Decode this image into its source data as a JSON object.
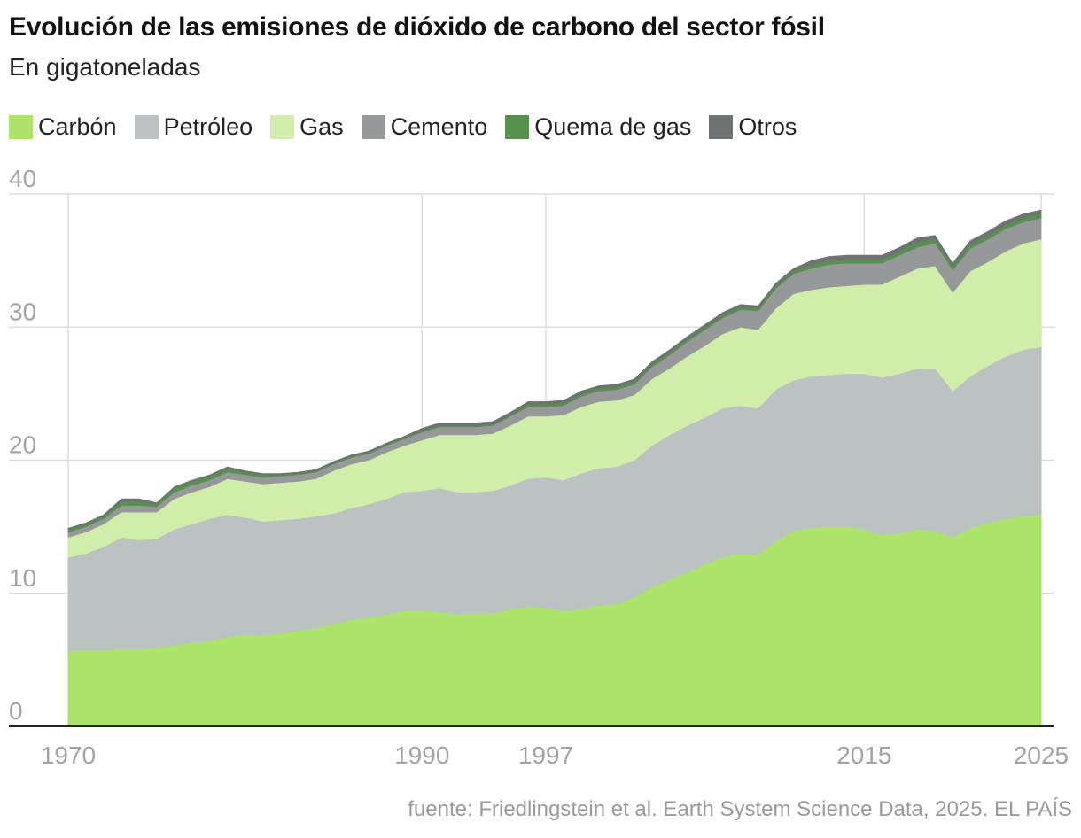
{
  "header": {
    "title": "Evolución de las emisiones de dióxido de carbono del sector fósil",
    "subtitle": "En gigatoneladas"
  },
  "source": "fuente: Friedlingstein et al. Earth System Science Data, 2025. EL PAÍS",
  "chart_data": {
    "type": "area",
    "stacked": true,
    "legend_position": "top-left",
    "grid": true,
    "xlim": [
      1970,
      2025
    ],
    "ylim": [
      0,
      40
    ],
    "x_ticks": [
      1970,
      1990,
      1997,
      2015,
      2025
    ],
    "y_ticks": [
      0,
      10,
      20,
      30,
      40
    ],
    "x": [
      1970,
      1971,
      1972,
      1973,
      1974,
      1975,
      1976,
      1977,
      1978,
      1979,
      1980,
      1981,
      1982,
      1983,
      1984,
      1985,
      1986,
      1987,
      1988,
      1989,
      1990,
      1991,
      1992,
      1993,
      1994,
      1995,
      1996,
      1997,
      1998,
      1999,
      2000,
      2001,
      2002,
      2003,
      2004,
      2005,
      2006,
      2007,
      2008,
      2009,
      2010,
      2011,
      2012,
      2013,
      2014,
      2015,
      2016,
      2017,
      2018,
      2019,
      2020,
      2021,
      2022,
      2023,
      2024,
      2025
    ],
    "series": [
      {
        "name": "Carbón",
        "color": "#abe36b",
        "values": [
          5.7,
          5.7,
          5.7,
          5.8,
          5.8,
          5.9,
          6.1,
          6.3,
          6.4,
          6.7,
          6.9,
          6.8,
          7.0,
          7.2,
          7.4,
          7.7,
          8.0,
          8.2,
          8.4,
          8.7,
          8.7,
          8.6,
          8.4,
          8.5,
          8.5,
          8.8,
          9.0,
          8.9,
          8.7,
          8.8,
          9.1,
          9.2,
          9.7,
          10.5,
          11.0,
          11.6,
          12.2,
          12.7,
          13.0,
          12.9,
          13.9,
          14.7,
          14.9,
          15.0,
          15.0,
          14.8,
          14.4,
          14.5,
          14.8,
          14.7,
          14.2,
          14.9,
          15.3,
          15.6,
          15.8,
          15.9
        ]
      },
      {
        "name": "Petróleo",
        "color": "#bcc1c1",
        "values": [
          7.0,
          7.3,
          7.8,
          8.4,
          8.2,
          8.2,
          8.7,
          8.9,
          9.2,
          9.2,
          8.8,
          8.6,
          8.5,
          8.4,
          8.4,
          8.3,
          8.4,
          8.5,
          8.7,
          8.9,
          9.0,
          9.3,
          9.2,
          9.1,
          9.2,
          9.3,
          9.6,
          9.8,
          9.8,
          10.2,
          10.3,
          10.3,
          10.3,
          10.6,
          10.9,
          11.0,
          11.0,
          11.2,
          11.1,
          11.0,
          11.4,
          11.3,
          11.4,
          11.4,
          11.5,
          11.7,
          11.8,
          12.0,
          12.1,
          12.2,
          11.0,
          11.4,
          11.8,
          12.2,
          12.5,
          12.6
        ]
      },
      {
        "name": "Gas",
        "color": "#d0edaa",
        "values": [
          1.5,
          1.6,
          1.7,
          1.9,
          2.1,
          2.0,
          2.3,
          2.4,
          2.4,
          2.7,
          2.7,
          2.8,
          2.8,
          2.8,
          2.8,
          3.2,
          3.3,
          3.3,
          3.5,
          3.5,
          3.8,
          4.0,
          4.3,
          4.3,
          4.3,
          4.5,
          4.7,
          4.6,
          4.9,
          5.0,
          5.0,
          5.0,
          4.9,
          5.0,
          5.0,
          5.2,
          5.4,
          5.6,
          5.9,
          5.9,
          6.1,
          6.5,
          6.5,
          6.6,
          6.6,
          6.7,
          7.0,
          7.3,
          7.5,
          7.7,
          7.4,
          7.9,
          7.8,
          7.9,
          8.0,
          8.1
        ]
      },
      {
        "name": "Cemento",
        "color": "#96989a",
        "values": [
          0.4,
          0.4,
          0.4,
          0.5,
          0.5,
          0.4,
          0.5,
          0.5,
          0.5,
          0.5,
          0.5,
          0.5,
          0.5,
          0.5,
          0.5,
          0.5,
          0.5,
          0.5,
          0.5,
          0.5,
          0.6,
          0.6,
          0.6,
          0.6,
          0.6,
          0.7,
          0.7,
          0.7,
          0.7,
          0.8,
          0.8,
          0.8,
          0.8,
          0.9,
          1.0,
          1.1,
          1.2,
          1.2,
          1.3,
          1.4,
          1.5,
          1.5,
          1.6,
          1.7,
          1.7,
          1.6,
          1.6,
          1.6,
          1.6,
          1.7,
          1.7,
          1.7,
          1.7,
          1.7,
          1.6,
          1.6
        ]
      },
      {
        "name": "Quema de gas",
        "color": "#57904f",
        "values": [
          0.2,
          0.2,
          0.2,
          0.3,
          0.3,
          0.2,
          0.3,
          0.3,
          0.3,
          0.3,
          0.2,
          0.2,
          0.1,
          0.1,
          0.1,
          0.1,
          0.1,
          0.1,
          0.1,
          0.1,
          0.1,
          0.1,
          0.1,
          0.1,
          0.1,
          0.1,
          0.2,
          0.2,
          0.2,
          0.2,
          0.2,
          0.2,
          0.2,
          0.2,
          0.2,
          0.2,
          0.2,
          0.2,
          0.2,
          0.2,
          0.2,
          0.2,
          0.3,
          0.3,
          0.3,
          0.3,
          0.3,
          0.3,
          0.4,
          0.3,
          0.3,
          0.3,
          0.3,
          0.3,
          0.3,
          0.3
        ]
      },
      {
        "name": "Otros",
        "color": "#6e7272",
        "values": [
          0.1,
          0.1,
          0.1,
          0.2,
          0.2,
          0.1,
          0.1,
          0.1,
          0.1,
          0.1,
          0.1,
          0.1,
          0.1,
          0.1,
          0.1,
          0.1,
          0.1,
          0.1,
          0.1,
          0.1,
          0.2,
          0.2,
          0.2,
          0.2,
          0.2,
          0.2,
          0.2,
          0.2,
          0.2,
          0.2,
          0.2,
          0.2,
          0.2,
          0.2,
          0.2,
          0.2,
          0.2,
          0.2,
          0.2,
          0.2,
          0.2,
          0.2,
          0.3,
          0.3,
          0.3,
          0.3,
          0.3,
          0.3,
          0.3,
          0.3,
          0.2,
          0.3,
          0.3,
          0.3,
          0.3,
          0.3
        ]
      }
    ]
  }
}
